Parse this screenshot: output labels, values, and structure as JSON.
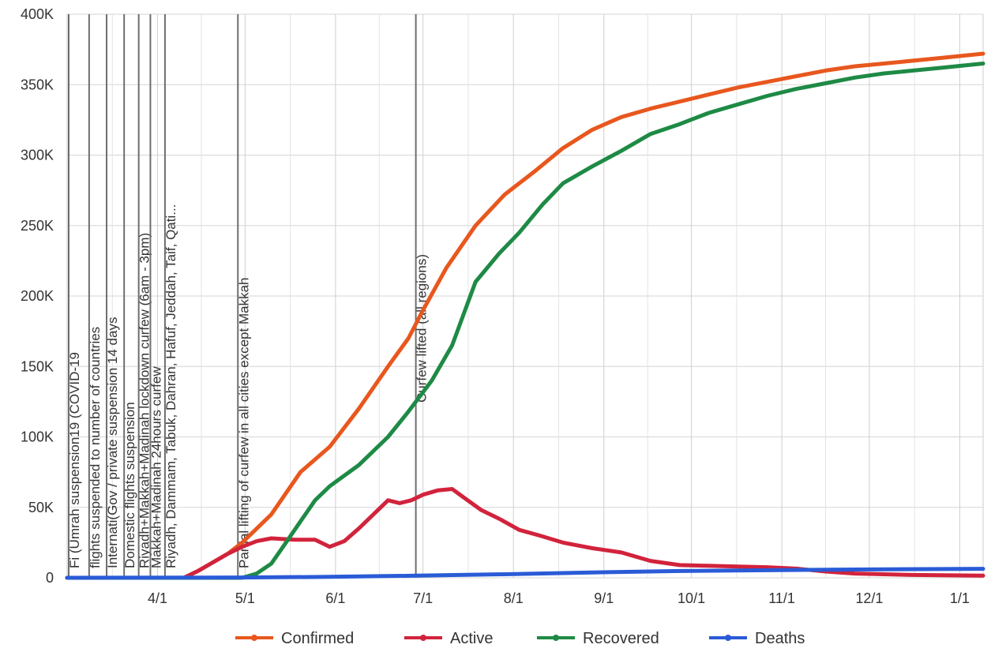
{
  "chart_data": {
    "type": "line",
    "title": "",
    "xlabel": "",
    "ylabel": "",
    "x_range": [
      0,
      314
    ],
    "ylim": [
      0,
      400000
    ],
    "y_ticks": [
      {
        "value": 0,
        "label": "0"
      },
      {
        "value": 50000,
        "label": "50K"
      },
      {
        "value": 100000,
        "label": "100K"
      },
      {
        "value": 150000,
        "label": "150K"
      },
      {
        "value": 200000,
        "label": "200K"
      },
      {
        "value": 250000,
        "label": "250K"
      },
      {
        "value": 300000,
        "label": "300K"
      },
      {
        "value": 350000,
        "label": "350K"
      },
      {
        "value": 400000,
        "label": "400K"
      }
    ],
    "x_ticks": [
      {
        "day": 31,
        "label": "4/1"
      },
      {
        "day": 61,
        "label": "5/1"
      },
      {
        "day": 92,
        "label": "6/1"
      },
      {
        "day": 122,
        "label": "7/1"
      },
      {
        "day": 153,
        "label": "8/1"
      },
      {
        "day": 184,
        "label": "9/1"
      },
      {
        "day": 214,
        "label": "10/1"
      },
      {
        "day": 245,
        "label": "11/1"
      },
      {
        "day": 275,
        "label": "12/1"
      },
      {
        "day": 306,
        "label": "1/1"
      }
    ],
    "annotations": [
      {
        "day": 0,
        "text": "Fi (Umrah suspension19 (COVID-19"
      },
      {
        "day": 7,
        "text": "flights suspended to number of countries"
      },
      {
        "day": 13,
        "text": "Internati(Gov / private suspension 14 days"
      },
      {
        "day": 19,
        "text": "Domestic flights suspension"
      },
      {
        "day": 24,
        "text": "Riyadh+Makkah+Madinah lockdown curfew (6am - 3pm)"
      },
      {
        "day": 28,
        "text": "Makkah+Madinah 24hours curfew"
      },
      {
        "day": 33,
        "text": "Riyadh, Dammam, Tabuk, Dahran, Hafuf, Jeddah, Taif, Qati..."
      },
      {
        "day": 58,
        "text": "Partial lifting of curfew in all cities except Makkah"
      },
      {
        "day": 119,
        "text": "Curfew lifted (all regions)"
      }
    ],
    "series": [
      {
        "name": "Confirmed",
        "color": "#e8571e",
        "points": [
          [
            0,
            0
          ],
          [
            40,
            0
          ],
          [
            45,
            5000
          ],
          [
            55,
            17000
          ],
          [
            60,
            25000
          ],
          [
            70,
            45000
          ],
          [
            80,
            75000
          ],
          [
            90,
            93000
          ],
          [
            100,
            120000
          ],
          [
            110,
            150000
          ],
          [
            117,
            170000
          ],
          [
            122,
            190000
          ],
          [
            130,
            220000
          ],
          [
            140,
            250000
          ],
          [
            150,
            272000
          ],
          [
            160,
            288000
          ],
          [
            170,
            305000
          ],
          [
            180,
            318000
          ],
          [
            190,
            327000
          ],
          [
            200,
            333000
          ],
          [
            210,
            338000
          ],
          [
            220,
            343000
          ],
          [
            230,
            348000
          ],
          [
            240,
            352000
          ],
          [
            250,
            356000
          ],
          [
            260,
            360000
          ],
          [
            270,
            363000
          ],
          [
            280,
            365000
          ],
          [
            290,
            367000
          ],
          [
            300,
            369000
          ],
          [
            314,
            372000
          ]
        ]
      },
      {
        "name": "Active",
        "color": "#d2233c",
        "points": [
          [
            0,
            0
          ],
          [
            40,
            0
          ],
          [
            45,
            5000
          ],
          [
            55,
            17000
          ],
          [
            60,
            22000
          ],
          [
            65,
            26000
          ],
          [
            70,
            28000
          ],
          [
            78,
            27000
          ],
          [
            85,
            27000
          ],
          [
            90,
            22000
          ],
          [
            95,
            26000
          ],
          [
            100,
            35000
          ],
          [
            105,
            45000
          ],
          [
            110,
            55000
          ],
          [
            114,
            53000
          ],
          [
            118,
            55000
          ],
          [
            122,
            59000
          ],
          [
            127,
            62000
          ],
          [
            132,
            63000
          ],
          [
            136,
            57000
          ],
          [
            142,
            48000
          ],
          [
            148,
            42000
          ],
          [
            155,
            34000
          ],
          [
            162,
            30000
          ],
          [
            170,
            25000
          ],
          [
            180,
            21000
          ],
          [
            190,
            18000
          ],
          [
            200,
            12000
          ],
          [
            210,
            9000
          ],
          [
            220,
            8500
          ],
          [
            230,
            8000
          ],
          [
            240,
            7500
          ],
          [
            250,
            6500
          ],
          [
            260,
            4500
          ],
          [
            270,
            3000
          ],
          [
            280,
            2500
          ],
          [
            290,
            2000
          ],
          [
            300,
            1800
          ],
          [
            314,
            1500
          ]
        ]
      },
      {
        "name": "Recovered",
        "color": "#1e8a45",
        "points": [
          [
            0,
            0
          ],
          [
            60,
            0
          ],
          [
            65,
            3000
          ],
          [
            70,
            10000
          ],
          [
            75,
            25000
          ],
          [
            80,
            40000
          ],
          [
            85,
            55000
          ],
          [
            90,
            65000
          ],
          [
            100,
            80000
          ],
          [
            110,
            100000
          ],
          [
            117,
            118000
          ],
          [
            125,
            140000
          ],
          [
            132,
            165000
          ],
          [
            140,
            210000
          ],
          [
            148,
            230000
          ],
          [
            155,
            245000
          ],
          [
            163,
            265000
          ],
          [
            170,
            280000
          ],
          [
            180,
            292000
          ],
          [
            190,
            303000
          ],
          [
            200,
            315000
          ],
          [
            210,
            322000
          ],
          [
            220,
            330000
          ],
          [
            230,
            336000
          ],
          [
            240,
            342000
          ],
          [
            250,
            347000
          ],
          [
            260,
            351000
          ],
          [
            270,
            355000
          ],
          [
            280,
            358000
          ],
          [
            290,
            360000
          ],
          [
            300,
            362000
          ],
          [
            314,
            365000
          ]
        ]
      },
      {
        "name": "Deaths",
        "color": "#2a5bd7",
        "points": [
          [
            0,
            0
          ],
          [
            60,
            200
          ],
          [
            90,
            700
          ],
          [
            120,
            1500
          ],
          [
            150,
            2500
          ],
          [
            180,
            3800
          ],
          [
            210,
            4800
          ],
          [
            240,
            5400
          ],
          [
            270,
            5900
          ],
          [
            300,
            6200
          ],
          [
            314,
            6400
          ]
        ]
      }
    ],
    "legend": {
      "position": "bottom",
      "entries": [
        "Confirmed",
        "Active",
        "Recovered",
        "Deaths"
      ]
    }
  }
}
